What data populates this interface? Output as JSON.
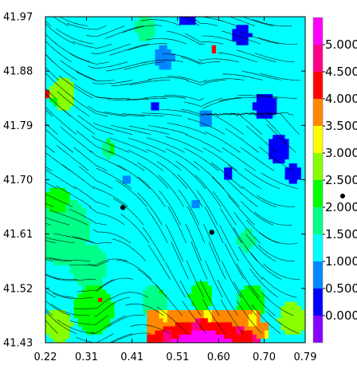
{
  "chart_data": {
    "type": "heatmap",
    "overlay": "streamlines",
    "title": "",
    "xlabel": "",
    "ylabel": "",
    "xlim": [
      0.22,
      0.79
    ],
    "ylim": [
      41.43,
      41.97
    ],
    "x_ticks": [
      "0.22",
      "0.31",
      "0.41",
      "0.51",
      "0.60",
      "0.70",
      "0.79"
    ],
    "y_ticks": [
      "41.97",
      "41.88",
      "41.79",
      "41.70",
      "41.61",
      "41.52",
      "41.43"
    ],
    "colorbar": {
      "labels": [
        "0.000",
        "0.500",
        "1.000",
        "1.500",
        "2.000",
        "2.500",
        "3.000",
        "3.500",
        "4.000",
        "4.500",
        "5.000"
      ],
      "bands": [
        {
          "from": -0.5,
          "to": 0.0,
          "color": "#8800ff"
        },
        {
          "from": 0.0,
          "to": 0.5,
          "color": "#0000ff"
        },
        {
          "from": 0.5,
          "to": 1.0,
          "color": "#0088ff"
        },
        {
          "from": 1.0,
          "to": 1.5,
          "color": "#00ffff"
        },
        {
          "from": 1.5,
          "to": 2.0,
          "color": "#00ff88"
        },
        {
          "from": 2.0,
          "to": 2.5,
          "color": "#00ff00"
        },
        {
          "from": 2.5,
          "to": 3.0,
          "color": "#88ff00"
        },
        {
          "from": 3.0,
          "to": 3.5,
          "color": "#ffff00"
        },
        {
          "from": 3.5,
          "to": 4.0,
          "color": "#ff8800"
        },
        {
          "from": 4.0,
          "to": 4.5,
          "color": "#ff0000"
        },
        {
          "from": 4.5,
          "to": 5.0,
          "color": "#ff0088"
        },
        {
          "from": 5.0,
          "to": 5.5,
          "color": "#ff00ff"
        }
      ]
    },
    "points": [
      {
        "x": 0.39,
        "y": 41.654
      },
      {
        "x": 0.585,
        "y": 41.613
      }
    ],
    "regions": [
      {
        "v": 1.25,
        "cx": 0.5,
        "cy": 41.7,
        "r": 0.6
      },
      {
        "v": 1.8,
        "cx": 0.27,
        "cy": 41.62,
        "r": 0.14
      },
      {
        "v": 2.2,
        "cx": 0.25,
        "cy": 41.66,
        "r": 0.07
      },
      {
        "v": 2.6,
        "cx": 0.26,
        "cy": 41.84,
        "r": 0.06
      },
      {
        "v": 1.8,
        "cx": 0.32,
        "cy": 41.56,
        "r": 0.1
      },
      {
        "v": 2.3,
        "cx": 0.33,
        "cy": 41.49,
        "r": 0.09
      },
      {
        "v": 2.8,
        "cx": 0.25,
        "cy": 41.46,
        "r": 0.05
      },
      {
        "v": 1.9,
        "cx": 0.46,
        "cy": 41.5,
        "r": 0.08
      },
      {
        "v": 2.2,
        "cx": 0.56,
        "cy": 41.51,
        "r": 0.07
      },
      {
        "v": 2.1,
        "cx": 0.67,
        "cy": 41.5,
        "r": 0.07
      },
      {
        "v": 2.8,
        "cx": 0.76,
        "cy": 41.47,
        "r": 0.05
      },
      {
        "v": 1.7,
        "cx": 0.66,
        "cy": 41.6,
        "r": 0.06
      },
      {
        "v": 2.0,
        "cx": 0.36,
        "cy": 41.75,
        "r": 0.06
      },
      {
        "v": 1.7,
        "cx": 0.44,
        "cy": 41.95,
        "r": 0.05
      },
      {
        "v": 0.7,
        "cx": 0.48,
        "cy": 41.9,
        "r": 0.06
      },
      {
        "v": 0.7,
        "cx": 0.57,
        "cy": 41.8,
        "r": 0.07
      },
      {
        "v": 0.75,
        "cx": 0.55,
        "cy": 41.66,
        "r": 0.07
      },
      {
        "v": 0.8,
        "cx": 0.4,
        "cy": 41.7,
        "r": 0.05
      },
      {
        "v": 0.3,
        "cx": 0.7,
        "cy": 41.82,
        "r": 0.06
      },
      {
        "v": 0.3,
        "cx": 0.73,
        "cy": 41.75,
        "r": 0.06
      },
      {
        "v": 0.25,
        "cx": 0.62,
        "cy": 41.71,
        "r": 0.06
      },
      {
        "v": 0.3,
        "cx": 0.65,
        "cy": 41.94,
        "r": 0.04
      },
      {
        "v": 0.35,
        "cx": 0.76,
        "cy": 41.71,
        "r": 0.04
      },
      {
        "v": 0.3,
        "cx": 0.46,
        "cy": 41.82,
        "r": 0.04
      },
      {
        "v": 0.35,
        "cx": 0.53,
        "cy": 41.97,
        "r": 0.04
      },
      {
        "v": 4.3,
        "cx": 0.59,
        "cy": 41.915,
        "r": 0.015
      },
      {
        "v": 4.1,
        "cx": 0.34,
        "cy": 41.5,
        "r": 0.02
      },
      {
        "v": 3.6,
        "cx": 0.7,
        "cy": 41.45,
        "r": 0.025
      },
      {
        "v": 4.3,
        "cx": 0.22,
        "cy": 41.84,
        "r": 0.015
      }
    ],
    "bottom_band": {
      "x_from": 0.44,
      "x_to": 0.69,
      "top_y": 41.485,
      "v_edge": 3.6,
      "v_mid": 4.4,
      "v_core": 5.3
    }
  }
}
